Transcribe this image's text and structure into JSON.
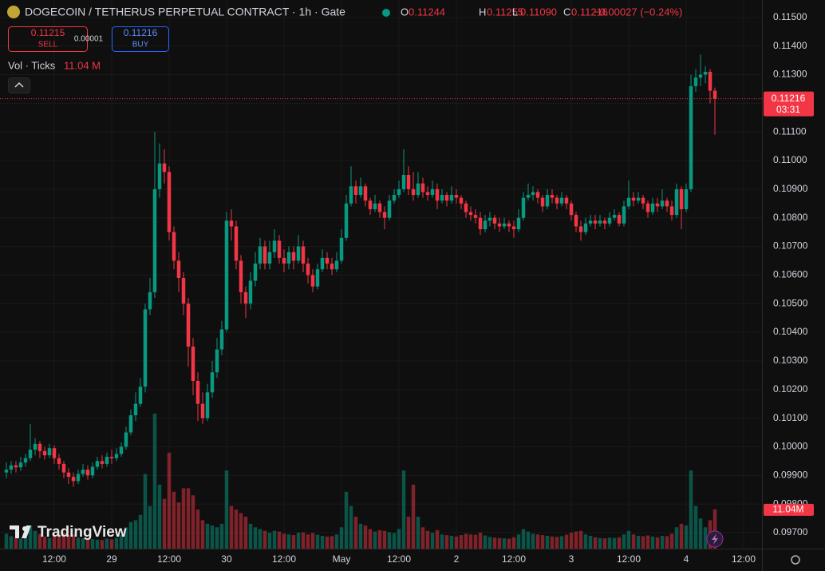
{
  "chart_data": {
    "type": "candlestick",
    "title": "DOGECOIN / TETHERUS PERPETUAL CONTRACT · 1h · Gate",
    "ohlc": [
      {
        "label": "O",
        "value": "0.11244"
      },
      {
        "label": "H",
        "value": "0.11255"
      },
      {
        "label": "L",
        "value": "0.11090"
      },
      {
        "label": "C",
        "value": "0.11216"
      }
    ],
    "change": "−0.00027 (−0.24%)",
    "sell": {
      "price": "0.11215",
      "label": "SELL"
    },
    "spread": "0.00001",
    "buy": {
      "price": "0.11216",
      "label": "BUY"
    },
    "volume_title": "Vol · Ticks",
    "volume_label": "11.04 M",
    "volume_badge": "11.04M",
    "last_price": {
      "value": 0.11216,
      "label": "0.11216"
    },
    "countdown": "03:31",
    "brand": "TradingView",
    "colors": {
      "up": "#089981",
      "down": "#f23645"
    },
    "ylim": [
      0.09644,
      0.11561
    ],
    "yticks": [
      {
        "value": 0.115,
        "label": "0.11500"
      },
      {
        "value": 0.114,
        "label": "0.11400"
      },
      {
        "value": 0.113,
        "label": "0.11300"
      },
      {
        "value": 0.112,
        "label": "0.11200"
      },
      {
        "value": 0.111,
        "label": "0.11100"
      },
      {
        "value": 0.11,
        "label": "0.11000"
      },
      {
        "value": 0.109,
        "label": "0.10900"
      },
      {
        "value": 0.108,
        "label": "0.10800"
      },
      {
        "value": 0.107,
        "label": "0.10700"
      },
      {
        "value": 0.106,
        "label": "0.10600"
      },
      {
        "value": 0.105,
        "label": "0.10500"
      },
      {
        "value": 0.104,
        "label": "0.10400"
      },
      {
        "value": 0.103,
        "label": "0.10300"
      },
      {
        "value": 0.102,
        "label": "0.10200"
      },
      {
        "value": 0.101,
        "label": "0.10100"
      },
      {
        "value": 0.1,
        "label": "0.10000"
      },
      {
        "value": 0.099,
        "label": "0.09900"
      },
      {
        "value": 0.098,
        "label": "0.09800"
      },
      {
        "value": 0.097,
        "label": "0.09700"
      }
    ],
    "xlim": [
      -1.33,
      157.83
    ],
    "xticks": [
      {
        "value": 10,
        "label": "12:00"
      },
      {
        "value": 22,
        "label": "29"
      },
      {
        "value": 34,
        "label": "12:00"
      },
      {
        "value": 46,
        "label": "30"
      },
      {
        "value": 58,
        "label": "12:00"
      },
      {
        "value": 70,
        "label": "May"
      },
      {
        "value": 82,
        "label": "12:00"
      },
      {
        "value": 94,
        "label": "2"
      },
      {
        "value": 106,
        "label": "12:00"
      },
      {
        "value": 118,
        "label": "3"
      },
      {
        "value": 130,
        "label": "12:00"
      },
      {
        "value": 142,
        "label": "4"
      },
      {
        "value": 154,
        "label": "12:00"
      }
    ],
    "vlim": [
      0,
      40
    ],
    "candles": [
      [
        0.0991,
        0.09945,
        0.0989,
        0.0992,
        4.2
      ],
      [
        0.0992,
        0.0995,
        0.09905,
        0.09935,
        3.5
      ],
      [
        0.09935,
        0.0995,
        0.0991,
        0.09928,
        3.0
      ],
      [
        0.09928,
        0.09965,
        0.09915,
        0.09945,
        2.8
      ],
      [
        0.09945,
        0.09975,
        0.0993,
        0.0996,
        3.2
      ],
      [
        0.0996,
        0.1008,
        0.0995,
        0.0999,
        6.5
      ],
      [
        0.0999,
        0.1003,
        0.0997,
        0.1001,
        5.0
      ],
      [
        0.1001,
        0.1002,
        0.0996,
        0.09985,
        4.1
      ],
      [
        0.09985,
        0.1,
        0.09955,
        0.0997,
        3.4
      ],
      [
        0.0997,
        0.1001,
        0.0996,
        0.09995,
        3.0
      ],
      [
        0.09995,
        0.10005,
        0.0994,
        0.0996,
        3.6
      ],
      [
        0.0996,
        0.09975,
        0.0992,
        0.0994,
        3.9
      ],
      [
        0.0994,
        0.0995,
        0.0989,
        0.0991,
        4.5
      ],
      [
        0.0991,
        0.09925,
        0.0987,
        0.09895,
        3.8
      ],
      [
        0.09895,
        0.0991,
        0.0986,
        0.0988,
        4.0
      ],
      [
        0.0988,
        0.0992,
        0.0987,
        0.09905,
        3.1
      ],
      [
        0.09905,
        0.0994,
        0.09895,
        0.0992,
        2.9
      ],
      [
        0.0992,
        0.09935,
        0.09885,
        0.099,
        2.6
      ],
      [
        0.099,
        0.09945,
        0.0989,
        0.0993,
        2.7
      ],
      [
        0.0993,
        0.09965,
        0.0992,
        0.0995,
        2.5
      ],
      [
        0.0995,
        0.0997,
        0.09925,
        0.0994,
        2.4
      ],
      [
        0.0994,
        0.0998,
        0.0993,
        0.09965,
        2.8
      ],
      [
        0.09965,
        0.0999,
        0.0994,
        0.0996,
        2.6
      ],
      [
        0.0996,
        0.09995,
        0.0995,
        0.09975,
        3.0
      ],
      [
        0.09975,
        0.10015,
        0.09965,
        0.1,
        3.8
      ],
      [
        0.1,
        0.1007,
        0.0999,
        0.1005,
        6.0
      ],
      [
        0.1005,
        0.1013,
        0.1004,
        0.1011,
        7.5
      ],
      [
        0.1011,
        0.1019,
        0.1009,
        0.1015,
        8.0
      ],
      [
        0.1015,
        0.1024,
        0.1014,
        0.1021,
        9.5
      ],
      [
        0.1021,
        0.105,
        0.1019,
        0.1048,
        21
      ],
      [
        0.1048,
        0.1059,
        0.1046,
        0.1054,
        12
      ],
      [
        0.1054,
        0.111,
        0.1052,
        0.109,
        38
      ],
      [
        0.109,
        0.1106,
        0.1087,
        0.1099,
        18
      ],
      [
        0.1099,
        0.1104,
        0.1092,
        0.1096,
        14
      ],
      [
        0.1096,
        0.1098,
        0.1072,
        0.1075,
        27
      ],
      [
        0.1075,
        0.1077,
        0.1062,
        0.1065,
        16
      ],
      [
        0.1065,
        0.1068,
        0.1054,
        0.1059,
        13
      ],
      [
        0.1059,
        0.1061,
        0.1046,
        0.105,
        17
      ],
      [
        0.105,
        0.1052,
        0.1028,
        0.1035,
        17
      ],
      [
        0.1035,
        0.1038,
        0.1018,
        0.1023,
        15
      ],
      [
        0.1023,
        0.1026,
        0.1009,
        0.1015,
        11
      ],
      [
        0.1015,
        0.1019,
        0.1008,
        0.101,
        8
      ],
      [
        0.101,
        0.1022,
        0.1009,
        0.1019,
        7
      ],
      [
        0.1019,
        0.103,
        0.1017,
        0.1026,
        6.5
      ],
      [
        0.1026,
        0.1038,
        0.1024,
        0.1034,
        6
      ],
      [
        0.1034,
        0.1044,
        0.1032,
        0.1041,
        7
      ],
      [
        0.1041,
        0.1082,
        0.104,
        0.1079,
        22
      ],
      [
        0.1079,
        0.1083,
        0.1072,
        0.1077,
        12
      ],
      [
        0.1077,
        0.1079,
        0.1062,
        0.1065,
        11
      ],
      [
        0.1065,
        0.1067,
        0.105,
        0.1054,
        10
      ],
      [
        0.1054,
        0.1056,
        0.1045,
        0.105,
        9
      ],
      [
        0.105,
        0.1061,
        0.1048,
        0.1058,
        7
      ],
      [
        0.1058,
        0.1068,
        0.1056,
        0.1064,
        6
      ],
      [
        0.1064,
        0.1073,
        0.1062,
        0.107,
        5.5
      ],
      [
        0.107,
        0.1072,
        0.1062,
        0.1064,
        5
      ],
      [
        0.1064,
        0.1072,
        0.1062,
        0.1068,
        4.5
      ],
      [
        0.1068,
        0.1076,
        0.1066,
        0.1072,
        5
      ],
      [
        0.1072,
        0.1074,
        0.1064,
        0.1066,
        4.8
      ],
      [
        0.1066,
        0.1069,
        0.1061,
        0.1064,
        4.2
      ],
      [
        0.1064,
        0.107,
        0.1062,
        0.1068,
        4
      ],
      [
        0.1068,
        0.107,
        0.1062,
        0.1065,
        3.8
      ],
      [
        0.1065,
        0.1074,
        0.1064,
        0.107,
        4.5
      ],
      [
        0.107,
        0.1072,
        0.1061,
        0.1064,
        4.6
      ],
      [
        0.1064,
        0.1066,
        0.1057,
        0.106,
        4
      ],
      [
        0.106,
        0.1062,
        0.1054,
        0.1056,
        4.4
      ],
      [
        0.1056,
        0.1064,
        0.1055,
        0.1062,
        3.9
      ],
      [
        0.1062,
        0.1069,
        0.1061,
        0.1066,
        3.6
      ],
      [
        0.1066,
        0.1068,
        0.1062,
        0.1064,
        3.4
      ],
      [
        0.1064,
        0.1066,
        0.106,
        0.1062,
        3.5
      ],
      [
        0.1062,
        0.1068,
        0.1061,
        0.1065,
        4
      ],
      [
        0.1065,
        0.1076,
        0.1064,
        0.1073,
        6
      ],
      [
        0.1073,
        0.1088,
        0.1072,
        0.1085,
        16
      ],
      [
        0.1085,
        0.1098,
        0.1084,
        0.1091,
        12
      ],
      [
        0.1091,
        0.1093,
        0.1085,
        0.1088,
        9
      ],
      [
        0.1088,
        0.1094,
        0.1087,
        0.1091,
        7
      ],
      [
        0.1091,
        0.1092,
        0.1084,
        0.1086,
        6.5
      ],
      [
        0.1086,
        0.1087,
        0.1081,
        0.1083,
        5.5
      ],
      [
        0.1083,
        0.1088,
        0.1082,
        0.1085,
        4.8
      ],
      [
        0.1085,
        0.1086,
        0.108,
        0.1082,
        5.2
      ],
      [
        0.1082,
        0.1084,
        0.1076,
        0.108,
        5
      ],
      [
        0.108,
        0.1088,
        0.1079,
        0.1086,
        4.6
      ],
      [
        0.1086,
        0.109,
        0.1085,
        0.1088,
        4.4
      ],
      [
        0.1088,
        0.1093,
        0.1087,
        0.109,
        5.5
      ],
      [
        0.109,
        0.1104,
        0.1089,
        0.1095,
        22
      ],
      [
        0.1095,
        0.1098,
        0.1088,
        0.109,
        9
      ],
      [
        0.109,
        0.1096,
        0.1086,
        0.1088,
        18
      ],
      [
        0.1088,
        0.1096,
        0.1087,
        0.1092,
        9
      ],
      [
        0.1092,
        0.1094,
        0.1087,
        0.1089,
        6
      ],
      [
        0.1089,
        0.1091,
        0.1086,
        0.1088,
        5
      ],
      [
        0.1088,
        0.1093,
        0.1087,
        0.109,
        4.5
      ],
      [
        0.109,
        0.1092,
        0.1083,
        0.1086,
        5.2
      ],
      [
        0.1086,
        0.109,
        0.1085,
        0.1088,
        4
      ],
      [
        0.1088,
        0.1089,
        0.1084,
        0.1086,
        3.8
      ],
      [
        0.1086,
        0.1091,
        0.1085,
        0.1088,
        3.6
      ],
      [
        0.1088,
        0.109,
        0.1085,
        0.1087,
        3.4
      ],
      [
        0.1087,
        0.1088,
        0.1083,
        0.1085,
        3.8
      ],
      [
        0.1085,
        0.1086,
        0.108,
        0.1082,
        4.2
      ],
      [
        0.1082,
        0.1084,
        0.1079,
        0.1081,
        4
      ],
      [
        0.1081,
        0.1083,
        0.1078,
        0.108,
        3.9
      ],
      [
        0.108,
        0.1082,
        0.1074,
        0.1076,
        4.5
      ],
      [
        0.1076,
        0.1081,
        0.1075,
        0.1079,
        3.7
      ],
      [
        0.1079,
        0.1082,
        0.1077,
        0.108,
        3.3
      ],
      [
        0.108,
        0.1081,
        0.1076,
        0.1078,
        3.1
      ],
      [
        0.1078,
        0.108,
        0.1075,
        0.1077,
        3
      ],
      [
        0.1077,
        0.108,
        0.1076,
        0.1078,
        2.9
      ],
      [
        0.1078,
        0.1079,
        0.1075,
        0.1077,
        2.8
      ],
      [
        0.1077,
        0.1079,
        0.1073,
        0.1076,
        3.2
      ],
      [
        0.1076,
        0.1083,
        0.1075,
        0.108,
        4
      ],
      [
        0.108,
        0.1089,
        0.1079,
        0.1087,
        5.5
      ],
      [
        0.1087,
        0.1092,
        0.1086,
        0.1088,
        4.8
      ],
      [
        0.1088,
        0.1091,
        0.1086,
        0.1089,
        4.2
      ],
      [
        0.1089,
        0.109,
        0.1085,
        0.1087,
        4
      ],
      [
        0.1087,
        0.1088,
        0.1082,
        0.1084,
        3.8
      ],
      [
        0.1084,
        0.109,
        0.1083,
        0.1088,
        3.6
      ],
      [
        0.1088,
        0.109,
        0.1085,
        0.1087,
        3.4
      ],
      [
        0.1087,
        0.1088,
        0.1083,
        0.1085,
        3.3
      ],
      [
        0.1085,
        0.1089,
        0.1084,
        0.1087,
        3.5
      ],
      [
        0.1087,
        0.1088,
        0.1083,
        0.1085,
        3.9
      ],
      [
        0.1085,
        0.1086,
        0.1079,
        0.1081,
        4.5
      ],
      [
        0.1081,
        0.1082,
        0.1075,
        0.1077,
        4.8
      ],
      [
        0.1077,
        0.1079,
        0.1072,
        0.1075,
        5
      ],
      [
        0.1075,
        0.108,
        0.1074,
        0.1078,
        4
      ],
      [
        0.1078,
        0.1081,
        0.1077,
        0.1079,
        3.6
      ],
      [
        0.1079,
        0.1081,
        0.1076,
        0.1078,
        3.2
      ],
      [
        0.1078,
        0.1081,
        0.1077,
        0.1079,
        3
      ],
      [
        0.1079,
        0.108,
        0.1076,
        0.1078,
        2.9
      ],
      [
        0.1078,
        0.1082,
        0.1077,
        0.108,
        3.1
      ],
      [
        0.108,
        0.1083,
        0.1079,
        0.1081,
        3
      ],
      [
        0.1081,
        0.1082,
        0.1077,
        0.1078,
        3.2
      ],
      [
        0.1078,
        0.1086,
        0.1077,
        0.1084,
        4
      ],
      [
        0.1084,
        0.1093,
        0.1083,
        0.1087,
        5
      ],
      [
        0.1087,
        0.1089,
        0.1084,
        0.1086,
        4
      ],
      [
        0.1086,
        0.1089,
        0.1085,
        0.1087,
        3.6
      ],
      [
        0.1087,
        0.1088,
        0.1083,
        0.1085,
        3.5
      ],
      [
        0.1085,
        0.1086,
        0.108,
        0.1082,
        3.7
      ],
      [
        0.1082,
        0.1087,
        0.1081,
        0.1085,
        3.4
      ],
      [
        0.1085,
        0.1087,
        0.1082,
        0.1084,
        3.2
      ],
      [
        0.1084,
        0.109,
        0.1083,
        0.1086,
        3.6
      ],
      [
        0.1086,
        0.1087,
        0.1082,
        0.1084,
        3.5
      ],
      [
        0.1084,
        0.1086,
        0.1079,
        0.1081,
        4.2
      ],
      [
        0.1081,
        0.1092,
        0.108,
        0.109,
        6
      ],
      [
        0.109,
        0.1091,
        0.1076,
        0.1083,
        7
      ],
      [
        0.1083,
        0.1092,
        0.1082,
        0.109,
        6.5
      ],
      [
        0.109,
        0.113,
        0.1089,
        0.1126,
        22
      ],
      [
        0.1126,
        0.1132,
        0.1124,
        0.1129,
        12
      ],
      [
        0.1129,
        0.1137,
        0.1126,
        0.113,
        8.5
      ],
      [
        0.113,
        0.1133,
        0.1127,
        0.1131,
        6
      ],
      [
        0.1131,
        0.1132,
        0.112,
        0.11244,
        8
      ],
      [
        0.11244,
        0.11255,
        0.1109,
        0.11216,
        11.04
      ]
    ]
  }
}
